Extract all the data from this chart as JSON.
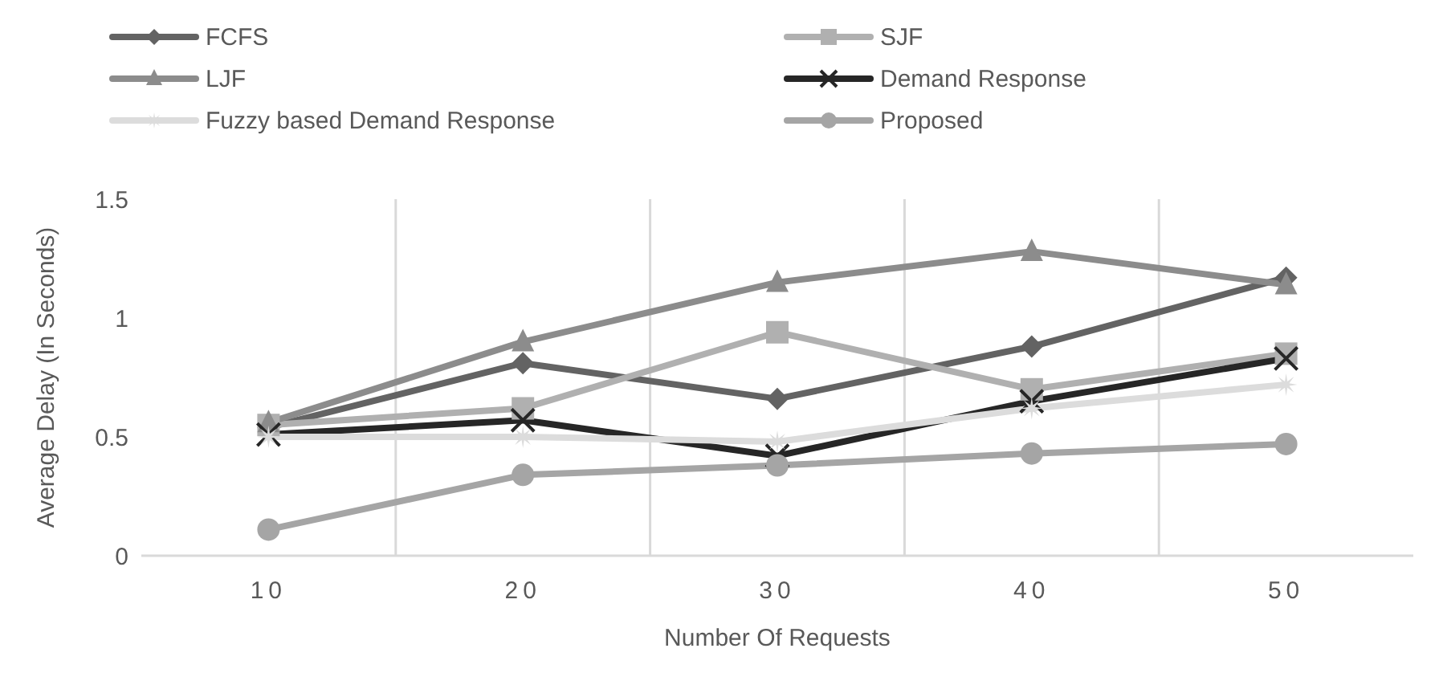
{
  "chart_data": {
    "type": "line",
    "xlabel": "Number Of Requests",
    "ylabel": "Average Delay (In Seconds)",
    "categories": [
      "10",
      "20",
      "30",
      "40",
      "50"
    ],
    "series": [
      {
        "name": "FCFS",
        "color": "#636363",
        "marker": "diamond",
        "values": [
          0.54,
          0.81,
          0.66,
          0.88,
          1.17
        ]
      },
      {
        "name": "SJF",
        "color": "#b0b0b0",
        "marker": "square",
        "values": [
          0.55,
          0.62,
          0.94,
          0.7,
          0.85
        ]
      },
      {
        "name": "LJF",
        "color": "#8c8c8c",
        "marker": "triangle",
        "values": [
          0.56,
          0.9,
          1.15,
          1.28,
          1.14
        ]
      },
      {
        "name": "Demand Response",
        "color": "#262626",
        "marker": "cross",
        "values": [
          0.51,
          0.57,
          0.42,
          0.65,
          0.83
        ]
      },
      {
        "name": "Fuzzy based Demand Response",
        "color": "#dcdcdc",
        "marker": "star",
        "values": [
          0.5,
          0.5,
          0.48,
          0.62,
          0.72
        ]
      },
      {
        "name": "Proposed",
        "color": "#a5a5a5",
        "marker": "circle",
        "values": [
          0.11,
          0.34,
          0.38,
          0.43,
          0.47
        ]
      }
    ],
    "ylim": [
      0,
      1.5
    ],
    "yticks": [
      0,
      0.5,
      1,
      1.5
    ],
    "grid": "x",
    "legend": "top"
  }
}
